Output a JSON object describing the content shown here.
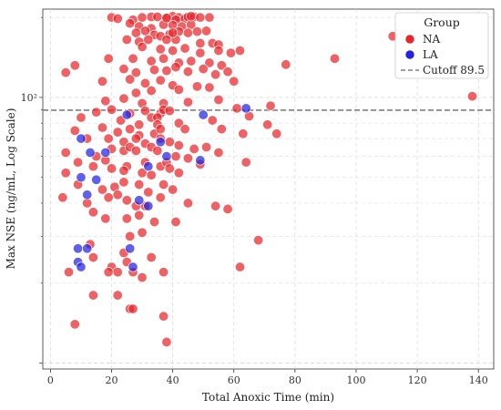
{
  "chart_data": {
    "type": "scatter",
    "title": "",
    "xlabel": "Total Anoxic Time (min)",
    "ylabel": "Max NSE (ng/mL, Log Scale)",
    "x_ticks": [
      0,
      20,
      40,
      60,
      80,
      100,
      120,
      140
    ],
    "y_ticks": [
      {
        "value": 100,
        "label": "10²"
      }
    ],
    "y_scale": "log",
    "xlim": [
      -2.5,
      145
    ],
    "ylim": [
      9.5,
      215
    ],
    "grid": true,
    "legend": {
      "title": "Group",
      "position": "top-right"
    },
    "cutoff": {
      "value": 89.5,
      "label": "Cutoff 89.5",
      "color": "#808080",
      "style": "dashed"
    },
    "series": [
      {
        "name": "NA",
        "color": "#e8262a",
        "points": [
          [
            20,
            200
          ],
          [
            22,
            198
          ],
          [
            27,
            196
          ],
          [
            30,
            200
          ],
          [
            33,
            201
          ],
          [
            35,
            201
          ],
          [
            38,
            199
          ],
          [
            40,
            202
          ],
          [
            42,
            200
          ],
          [
            44,
            198
          ],
          [
            45,
            201
          ],
          [
            47,
            201
          ],
          [
            49,
            200
          ],
          [
            52,
            200
          ],
          [
            41,
            196
          ],
          [
            26,
            190
          ],
          [
            29,
            185
          ],
          [
            33,
            182
          ],
          [
            37,
            188
          ],
          [
            40,
            187
          ],
          [
            43,
            185
          ],
          [
            46,
            188
          ],
          [
            28,
            175
          ],
          [
            31,
            178
          ],
          [
            34,
            172
          ],
          [
            36,
            170
          ],
          [
            39,
            173
          ],
          [
            42,
            177
          ],
          [
            45,
            175
          ],
          [
            48,
            177
          ],
          [
            51,
            178
          ],
          [
            25,
            165
          ],
          [
            29,
            162
          ],
          [
            32,
            165
          ],
          [
            38,
            165
          ],
          [
            41,
            165
          ],
          [
            49,
            160
          ],
          [
            53,
            160
          ],
          [
            55,
            158
          ],
          [
            30,
            155
          ],
          [
            36,
            152
          ],
          [
            40,
            150
          ],
          [
            44,
            153
          ],
          [
            49,
            147
          ],
          [
            55,
            150
          ],
          [
            59,
            147
          ],
          [
            62,
            150
          ],
          [
            8,
            132
          ],
          [
            19,
            140
          ],
          [
            27,
            140
          ],
          [
            33,
            137
          ],
          [
            37,
            140
          ],
          [
            42,
            135
          ],
          [
            46,
            137
          ],
          [
            52,
            135
          ],
          [
            56,
            132
          ],
          [
            77,
            133
          ],
          [
            93,
            140
          ],
          [
            5,
            124
          ],
          [
            24,
            128
          ],
          [
            28,
            124
          ],
          [
            34,
            127
          ],
          [
            38,
            126
          ],
          [
            41,
            130
          ],
          [
            45,
            125
          ],
          [
            50,
            128
          ],
          [
            54,
            122
          ],
          [
            58,
            125
          ],
          [
            17,
            115
          ],
          [
            26,
            117
          ],
          [
            31,
            113
          ],
          [
            36,
            116
          ],
          [
            40,
            111
          ],
          [
            48,
            110
          ],
          [
            52,
            109
          ],
          [
            60,
            115
          ],
          [
            28,
            104
          ],
          [
            33,
            106
          ],
          [
            42,
            107
          ],
          [
            138,
            101
          ],
          [
            18,
            97
          ],
          [
            24,
            99
          ],
          [
            30,
            95
          ],
          [
            37,
            95
          ],
          [
            45,
            96
          ],
          [
            55,
            98
          ],
          [
            61,
            91
          ],
          [
            72,
            93
          ],
          [
            15,
            88
          ],
          [
            20,
            90
          ],
          [
            26,
            87
          ],
          [
            31,
            89
          ],
          [
            36,
            87
          ],
          [
            37,
            90
          ],
          [
            39,
            89
          ],
          [
            10,
            84
          ],
          [
            23,
            82
          ],
          [
            29,
            79
          ],
          [
            33,
            84
          ],
          [
            35,
            84
          ],
          [
            35,
            79
          ],
          [
            42,
            80
          ],
          [
            53,
            82
          ],
          [
            65,
            85
          ],
          [
            8,
            75
          ],
          [
            17,
            77
          ],
          [
            22,
            74
          ],
          [
            26,
            76
          ],
          [
            29,
            72
          ],
          [
            34,
            73
          ],
          [
            36,
            76
          ],
          [
            44,
            76
          ],
          [
            56,
            76
          ],
          [
            71,
            79
          ],
          [
            12,
            70
          ],
          [
            19,
            70
          ],
          [
            24,
            68
          ],
          [
            28,
            70
          ],
          [
            31,
            67
          ],
          [
            36,
            70
          ],
          [
            39,
            68
          ],
          [
            42,
            66
          ],
          [
            63,
            73
          ],
          [
            74,
            73
          ],
          [
            5,
            62
          ],
          [
            15,
            60
          ],
          [
            20,
            64
          ],
          [
            24,
            63
          ],
          [
            26,
            65
          ],
          [
            28,
            63
          ],
          [
            33,
            65
          ],
          [
            35,
            63
          ],
          [
            47,
            64
          ],
          [
            51,
            65
          ],
          [
            9,
            57
          ],
          [
            18,
            58
          ],
          [
            25,
            55
          ],
          [
            31,
            57
          ],
          [
            36,
            55
          ],
          [
            38,
            57
          ],
          [
            41,
            60
          ],
          [
            45,
            59
          ],
          [
            55,
            62
          ],
          [
            5,
            52
          ],
          [
            14,
            55
          ],
          [
            20,
            54
          ],
          [
            24,
            53
          ],
          [
            30,
            52
          ],
          [
            33,
            51
          ],
          [
            39,
            54
          ],
          [
            42,
            52
          ],
          [
            49,
            56
          ],
          [
            64,
            57
          ],
          [
            9,
            47
          ],
          [
            17,
            45
          ],
          [
            21,
            46
          ],
          [
            24,
            48
          ],
          [
            29,
            47
          ],
          [
            32,
            44
          ],
          [
            37,
            47
          ],
          [
            40,
            45
          ],
          [
            4,
            42
          ],
          [
            12,
            40
          ],
          [
            19,
            42
          ],
          [
            22,
            43
          ],
          [
            25,
            41
          ],
          [
            28,
            39
          ],
          [
            31,
            39
          ],
          [
            36,
            42
          ],
          [
            45,
            40
          ],
          [
            54,
            39
          ],
          [
            58,
            38
          ],
          [
            14,
            37
          ],
          [
            18,
            35
          ],
          [
            25,
            35
          ],
          [
            29,
            36
          ],
          [
            34,
            34
          ],
          [
            41,
            34
          ],
          [
            26,
            30
          ],
          [
            30,
            31
          ],
          [
            68,
            29
          ],
          [
            13,
            28
          ],
          [
            14,
            25
          ],
          [
            20,
            23
          ],
          [
            24,
            26
          ],
          [
            25,
            24
          ],
          [
            33,
            25
          ],
          [
            6,
            22
          ],
          [
            19,
            22
          ],
          [
            22,
            22
          ],
          [
            27,
            22
          ],
          [
            30,
            21
          ],
          [
            37,
            22
          ],
          [
            62,
            23
          ],
          [
            14,
            18
          ],
          [
            22,
            18
          ],
          [
            26,
            16
          ],
          [
            27,
            16
          ],
          [
            37,
            15
          ],
          [
            8,
            14
          ],
          [
            38,
            12
          ],
          [
            112,
            170
          ],
          [
            40,
            175
          ],
          [
            38,
            199
          ],
          [
            46,
            202
          ]
        ]
      },
      {
        "name": "LA",
        "color": "#2222e0",
        "points": [
          [
            25,
            86
          ],
          [
            50,
            86
          ],
          [
            64,
            91
          ],
          [
            10,
            70
          ],
          [
            36,
            68
          ],
          [
            13,
            62
          ],
          [
            18,
            62
          ],
          [
            38,
            60
          ],
          [
            49,
            58
          ],
          [
            32,
            55
          ],
          [
            10,
            50
          ],
          [
            15,
            49
          ],
          [
            12,
            43
          ],
          [
            29,
            41
          ],
          [
            32,
            39
          ],
          [
            9,
            27
          ],
          [
            12,
            27
          ],
          [
            26,
            27
          ],
          [
            9,
            24
          ],
          [
            10,
            23
          ],
          [
            27,
            23
          ]
        ]
      }
    ]
  }
}
